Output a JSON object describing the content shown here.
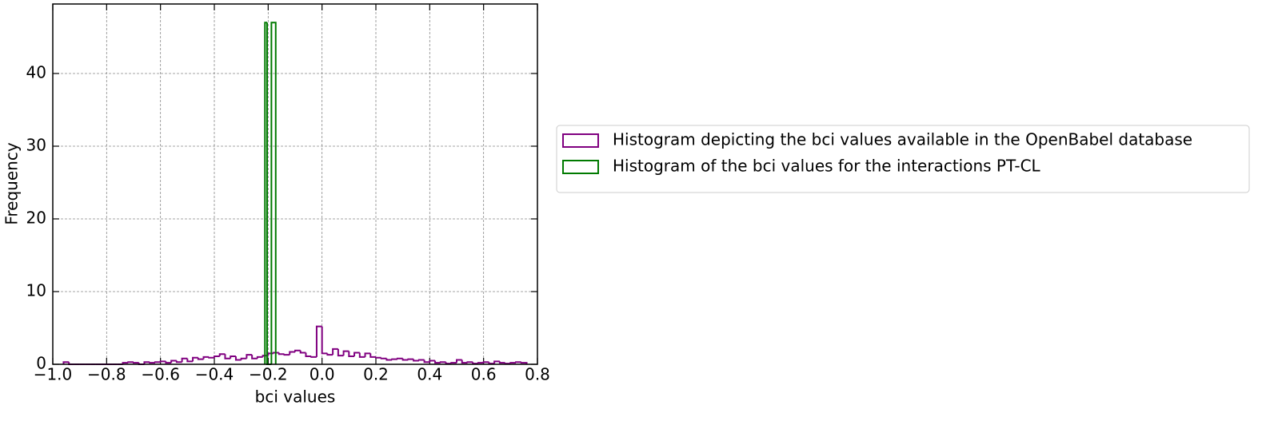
{
  "chart_data": {
    "type": "histogram",
    "x_label": "bci values",
    "y_label": "Frequency",
    "xlim": [
      -1.0,
      0.8
    ],
    "ylim": [
      0,
      49.56
    ],
    "xticks": [
      {
        "value": -1.0,
        "label": "−1.0"
      },
      {
        "value": -0.8,
        "label": "−0.8"
      },
      {
        "value": -0.6,
        "label": "−0.6"
      },
      {
        "value": -0.4,
        "label": "−0.4"
      },
      {
        "value": -0.2,
        "label": "−0.2"
      },
      {
        "value": 0.0,
        "label": "0.0"
      },
      0.2,
      0.4,
      0.6,
      0.8
    ],
    "yticks": [
      0,
      10,
      20,
      30,
      40
    ],
    "grid": true,
    "legend_loc": "outside right",
    "series": [
      {
        "name": "Histogram depicting the bci values available in the OpenBabel database",
        "color": "#800080",
        "bins": [
          -0.96,
          -0.94,
          -0.92,
          -0.9,
          -0.88,
          -0.86,
          -0.84,
          -0.82,
          -0.8,
          -0.78,
          -0.76,
          -0.74,
          -0.72,
          -0.7,
          -0.68,
          -0.66,
          -0.64,
          -0.62,
          -0.6,
          -0.58,
          -0.56,
          -0.54,
          -0.52,
          -0.5,
          -0.48,
          -0.46,
          -0.44,
          -0.42,
          -0.4,
          -0.38,
          -0.36,
          -0.34,
          -0.32,
          -0.3,
          -0.28,
          -0.26,
          -0.24,
          -0.22,
          -0.2,
          -0.18,
          -0.16,
          -0.14,
          -0.12,
          -0.1,
          -0.08,
          -0.06,
          -0.04,
          -0.02,
          0.0,
          0.02,
          0.04,
          0.06,
          0.08,
          0.1,
          0.12,
          0.14,
          0.16,
          0.18,
          0.2,
          0.22,
          0.24,
          0.26,
          0.28,
          0.3,
          0.32,
          0.34,
          0.36,
          0.38,
          0.4,
          0.42,
          0.44,
          0.46,
          0.48,
          0.5,
          0.52,
          0.54,
          0.56,
          0.58,
          0.6,
          0.62,
          0.64,
          0.66,
          0.68,
          0.7,
          0.72,
          0.74,
          0.76
        ],
        "values": [
          0.3,
          0,
          0,
          0,
          0,
          0,
          0,
          0,
          0,
          0,
          0,
          0.2,
          0.3,
          0.2,
          0,
          0.3,
          0.2,
          0.3,
          0.4,
          0.2,
          0.5,
          0.3,
          0.8,
          0.4,
          0.9,
          0.7,
          1.0,
          0.9,
          1.1,
          1.4,
          0.8,
          1.1,
          0.6,
          0.8,
          1.3,
          0.8,
          1.0,
          1.2,
          1.5,
          1.6,
          1.4,
          1.3,
          1.7,
          1.9,
          1.6,
          1.1,
          1.0,
          5.2,
          1.5,
          1.3,
          2.1,
          1.2,
          1.8,
          1.1,
          1.6,
          1.0,
          1.5,
          1.0,
          0.9,
          0.8,
          0.6,
          0.7,
          0.8,
          0.6,
          0.7,
          0.5,
          0.6,
          0.3,
          0.5,
          0.2,
          0.3,
          0.1,
          0.2,
          0.6,
          0.2,
          0.3,
          0.1,
          0.2,
          0.3,
          0.1,
          0.4,
          0.2,
          0.1,
          0.2,
          0.3,
          0.2
        ]
      },
      {
        "name": "Histogram of the bci values for the interactions PT-CL",
        "color": "#007a00",
        "bins": [
          -0.212,
          -0.204,
          -0.196,
          -0.188,
          -0.18,
          -0.172
        ],
        "values": [
          47,
          0,
          0,
          47,
          47
        ]
      }
    ]
  }
}
